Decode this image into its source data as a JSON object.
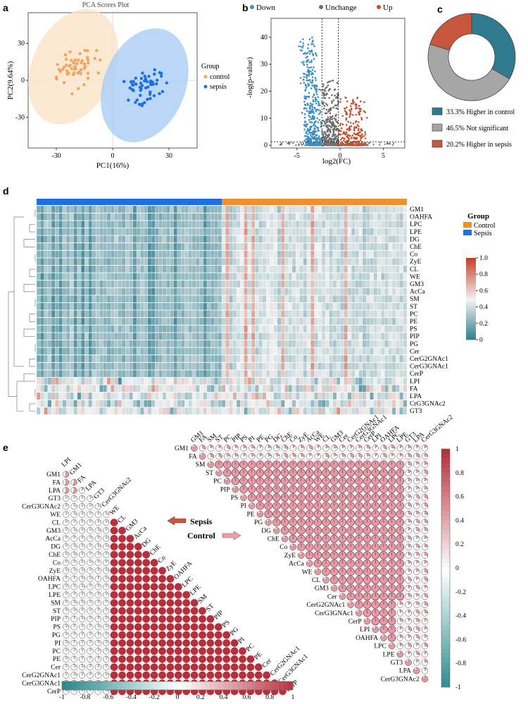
{
  "panels": {
    "a": "a",
    "b": "b",
    "c": "c",
    "d": "d",
    "e": "e"
  },
  "colors": {
    "control": "#f4a460",
    "control_fill": "#fbe3c8",
    "sepsis": "#1e6ee6",
    "sepsis_fill": "#a9cdf5",
    "down": "#3b8fc3",
    "unchange": "#6e6e6e",
    "up": "#c6502b",
    "donut_control": "#2f7a8f",
    "donut_ns": "#a6a6a6",
    "donut_sepsis": "#c6573d",
    "heat_low": "#2a7b8c",
    "heat_mid": "#f2f2f2",
    "heat_high": "#c4432b",
    "corr_pos": "#b5303a",
    "corr_pink": "#e79aa6",
    "corr_neg": "#2a8a8c"
  },
  "chart_data": [
    {
      "id": "pca",
      "type": "scatter",
      "title": "PCA Scores Plot",
      "xlabel": "PC1(16%)",
      "ylabel": "PC2(9.64%)",
      "xlim": [
        -45,
        45
      ],
      "ylim": [
        -55,
        55
      ],
      "xticks": [
        "-30",
        "0",
        "30"
      ],
      "xtick_values": [
        -30,
        0,
        30
      ],
      "yticks": [
        "30",
        "0",
        "-30"
      ],
      "ytick_values": [
        30,
        0,
        -30
      ],
      "legend_title": "Group",
      "series": [
        {
          "name": "control",
          "center": [
            -20,
            10
          ],
          "spread": [
            12,
            18
          ]
        },
        {
          "name": "sepsis",
          "center": [
            18,
            -6
          ],
          "spread": [
            12,
            16
          ]
        }
      ]
    },
    {
      "id": "volcano",
      "type": "scatter",
      "xlabel": "log2(FC)",
      "ylabel": "-log(p-value)",
      "xlim": [
        -8,
        7.5
      ],
      "ylim": [
        -1,
        47
      ],
      "xticks": [
        "-5",
        "0",
        "5"
      ],
      "xtick_values": [
        -5,
        0,
        5
      ],
      "yticks": [
        "40",
        "30",
        "20",
        "10",
        "0"
      ],
      "ytick_values": [
        40,
        30,
        20,
        10,
        0
      ],
      "legend": [
        "Down",
        "Unchange",
        "Up"
      ],
      "thresholds": {
        "x": [
          -2.1,
          -0.2
        ],
        "y": 1.3
      }
    },
    {
      "id": "donut",
      "type": "pie",
      "labels": [
        "Higher  in control",
        "Not significant",
        "Higher in sepsis"
      ],
      "percent_labels": [
        "33.3%",
        "46.5%",
        "20.2%"
      ],
      "values": [
        33.3,
        46.5,
        20.2
      ]
    },
    {
      "id": "heatmap",
      "type": "heatmap",
      "rows": [
        "GM1",
        "OAHFA",
        "LPC",
        "LPE",
        "DG",
        "ChE",
        "Co",
        "ZyE",
        "CL",
        "WE",
        "GM3",
        "AcCa",
        "SM",
        "ST",
        "PC",
        "PE",
        "PS",
        "PIP",
        "PG",
        "Cer",
        "CerG2GNAc1",
        "CerG3GNAc1",
        "CerP",
        "LPI",
        "FA",
        "LPA",
        "CrG3GNAc2",
        "GT3"
      ],
      "n_columns": 100,
      "group_split": 50,
      "legend_title": "Group",
      "legend": [
        "Control",
        "Sepsis"
      ],
      "colorbar_ticks": [
        "1.0",
        "0.8",
        "0.6",
        "0.4",
        "0.2",
        "0"
      ],
      "colorbar_values": [
        1.0,
        0.8,
        0.6,
        0.4,
        0.2,
        0
      ],
      "range": [
        0,
        1
      ]
    },
    {
      "id": "corr_sepsis",
      "type": "heatmap",
      "labels": [
        "LPI",
        "GM1",
        "FA",
        "LPA",
        "GT3",
        "CerG3GNAc2",
        "WE",
        "CL",
        "GM3",
        "AcCa",
        "DG",
        "ChE",
        "Co",
        "ZyE",
        "OAHFA",
        "LPC",
        "LPE",
        "SM",
        "ST",
        "PIP",
        "PS",
        "PG",
        "PI",
        "PC",
        "PE",
        "Cer",
        "CerG2GNAc1",
        "CerG3GNAc1",
        "CerP"
      ],
      "weak_count": 6,
      "colorbar_ticks": [
        "-1",
        "-0.8",
        "-0.6",
        "-0.4",
        "-0.2",
        "0",
        "0.2",
        "0.4",
        "0.6",
        "0.8",
        "1"
      ],
      "colorbar_values": [
        -1,
        -0.8,
        -0.6,
        -0.4,
        -0.2,
        0,
        0.2,
        0.4,
        0.6,
        0.8,
        1
      ]
    },
    {
      "id": "corr_control",
      "type": "heatmap",
      "labels": [
        "GM1",
        "FA",
        "SM",
        "ST",
        "PC",
        "PIP",
        "PS",
        "PI",
        "PE",
        "PG",
        "DG",
        "ChE",
        "Co",
        "ZyE",
        "AcCa",
        "WE",
        "CL",
        "GM3",
        "Cer",
        "CerG2GNAc1",
        "CerG3GNAc1",
        "CerP",
        "LPI",
        "OAHFA",
        "LPC",
        "LPE",
        "GT3",
        "LPA",
        "CerG3GNAc2"
      ],
      "colorbar_ticks": [
        "1",
        "0.8",
        "0.6",
        "0.4",
        "0.2",
        "0",
        "-0.2",
        "-0.4",
        "-0.6",
        "-0.8",
        "-1"
      ],
      "colorbar_values": [
        1,
        0.8,
        0.6,
        0.4,
        0.2,
        0,
        -0.2,
        -0.4,
        -0.6,
        -0.8,
        -1
      ]
    }
  ],
  "annotations": {
    "sepsis_label": "Sepsis",
    "control_label": "Control"
  }
}
